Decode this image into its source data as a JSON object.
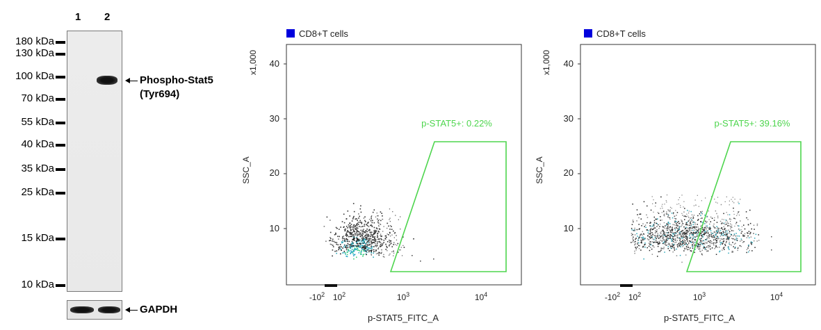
{
  "western_blot": {
    "lanes": [
      "1",
      "2"
    ],
    "markers": [
      "180 kDa",
      "130 kDa",
      "100 kDa",
      "70 kDa",
      "55 kDa",
      "40 kDa",
      "35 kDa",
      "25 kDa",
      "15 kDa",
      "10 kDa"
    ],
    "band_label_line1": "Phospho-Stat5",
    "band_label_line2": "(Tyr694)",
    "loading_control_label": "GAPDH"
  },
  "flow_plots": [
    {
      "legend": "CD8+T cells",
      "legend_color": "#0000dd",
      "y_multiplier": "x1,000",
      "y_label": "SSC_A",
      "y_ticks": [
        "10",
        "20",
        "30",
        "40"
      ],
      "x_label": "p-STAT5_FITC_A",
      "x_tick_neg": "-10",
      "x_tick_neg_exp": "2",
      "x_tick_a": "10",
      "x_tick_a_exp": "2",
      "x_tick_b": "10",
      "x_tick_b_exp": "3",
      "x_tick_c": "10",
      "x_tick_c_exp": "4",
      "gate_label": "p-STAT5+: 0.22%",
      "gate_color": "#4dd54d"
    },
    {
      "legend": "CD8+T cells",
      "legend_color": "#0000dd",
      "y_multiplier": "x1,000",
      "y_label": "SSC_A",
      "y_ticks": [
        "10",
        "20",
        "30",
        "40"
      ],
      "x_label": "p-STAT5_FITC_A",
      "x_tick_neg": "-10",
      "x_tick_neg_exp": "2",
      "x_tick_a": "10",
      "x_tick_a_exp": "2",
      "x_tick_b": "10",
      "x_tick_b_exp": "3",
      "x_tick_c": "10",
      "x_tick_c_exp": "4",
      "gate_label": "p-STAT5+: 39.16%",
      "gate_color": "#4dd54d"
    }
  ]
}
